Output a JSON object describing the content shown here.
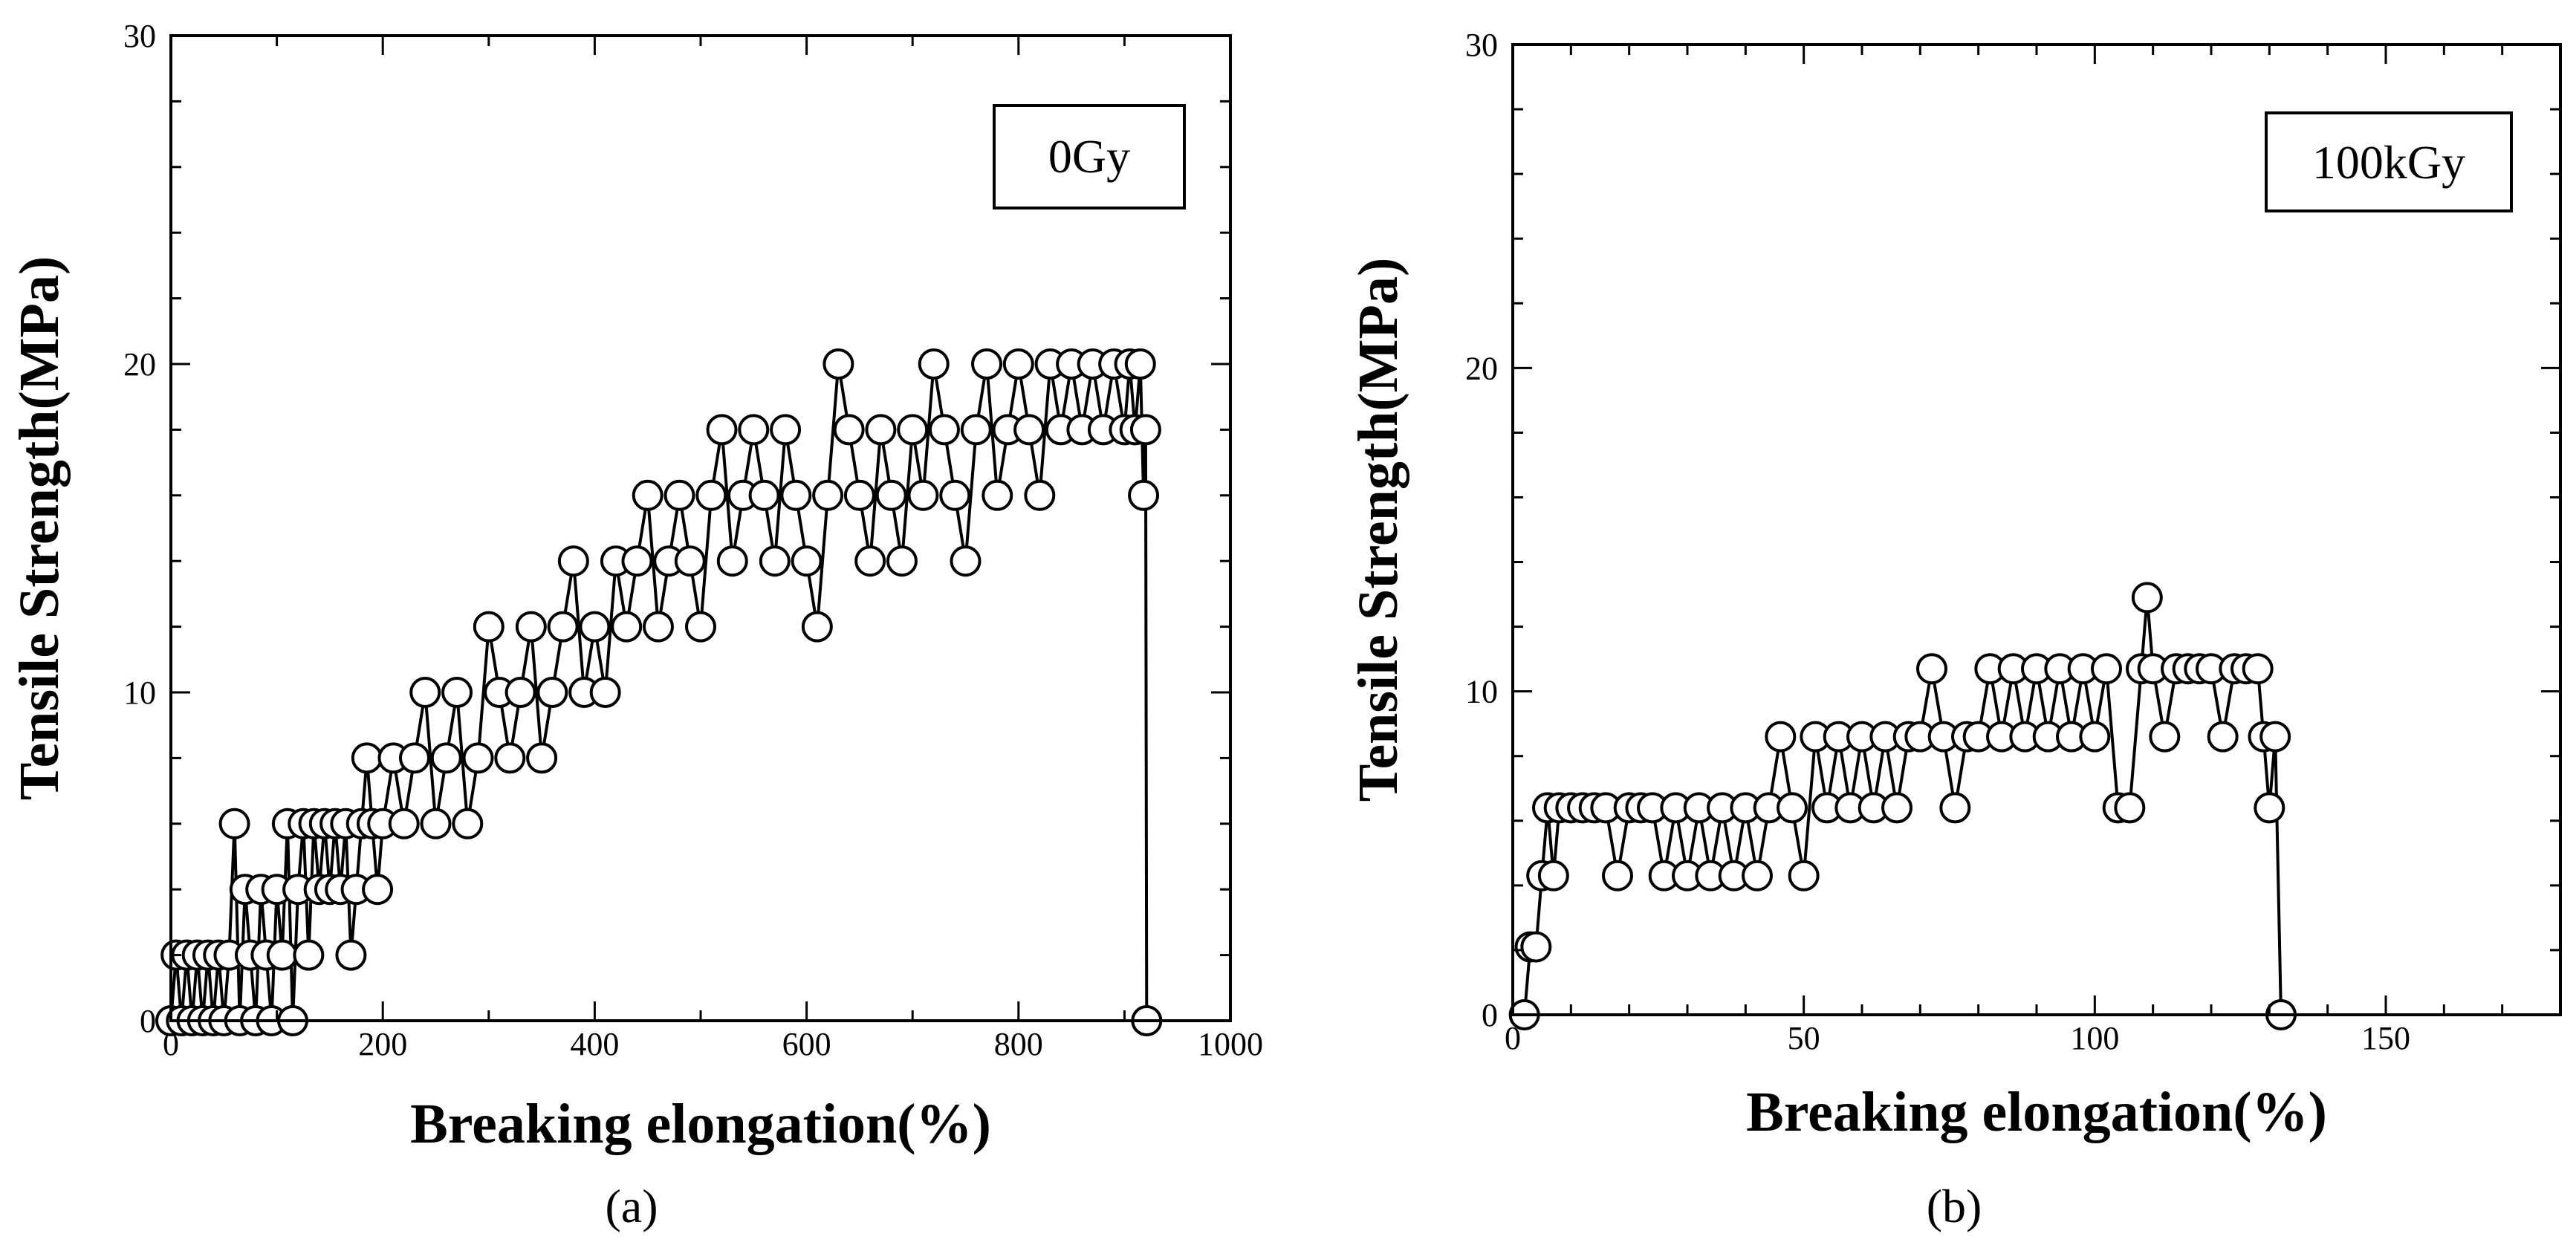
{
  "chart_data": [
    {
      "type": "line",
      "panel_caption": "(a)",
      "legend": "0Gy",
      "xlabel": "Breaking elongation(%)",
      "ylabel": "Tensile Strength(MPa)",
      "xlim": [
        0,
        1000
      ],
      "ylim": [
        0,
        30
      ],
      "xticks": [
        0,
        200,
        400,
        600,
        800,
        1000
      ],
      "yticks": [
        0,
        10,
        20,
        30
      ],
      "x_minor_step": 100,
      "y_minor_step": 2,
      "marker": "open-circle",
      "series": [
        {
          "name": "0Gy",
          "x": [
            0,
            5,
            10,
            15,
            20,
            25,
            30,
            35,
            40,
            45,
            50,
            55,
            60,
            65,
            70,
            75,
            80,
            85,
            90,
            95,
            100,
            105,
            110,
            115,
            120,
            125,
            130,
            135,
            140,
            145,
            150,
            155,
            160,
            165,
            170,
            175,
            180,
            185,
            190,
            195,
            200,
            210,
            220,
            230,
            240,
            250,
            260,
            270,
            280,
            290,
            300,
            310,
            320,
            330,
            340,
            350,
            360,
            370,
            380,
            390,
            400,
            410,
            420,
            430,
            440,
            450,
            460,
            470,
            480,
            490,
            500,
            510,
            520,
            530,
            540,
            550,
            560,
            570,
            580,
            590,
            600,
            610,
            620,
            630,
            640,
            650,
            660,
            670,
            680,
            690,
            700,
            710,
            720,
            730,
            740,
            750,
            760,
            770,
            780,
            790,
            800,
            810,
            820,
            830,
            840,
            850,
            860,
            870,
            880,
            890,
            900,
            905,
            910,
            915,
            918,
            920,
            921
          ],
          "y": [
            0,
            2,
            0,
            2,
            0,
            2,
            0,
            2,
            0,
            2,
            0,
            2,
            6,
            0,
            4,
            2,
            0,
            4,
            2,
            0,
            4,
            2,
            6,
            0,
            4,
            6,
            2,
            6,
            4,
            6,
            4,
            6,
            4,
            6,
            2,
            4,
            6,
            8,
            6,
            4,
            6,
            8,
            6,
            8,
            10,
            6,
            8,
            10,
            6,
            8,
            12,
            10,
            8,
            10,
            12,
            8,
            10,
            12,
            14,
            10,
            12,
            10,
            14,
            12,
            14,
            16,
            12,
            14,
            16,
            14,
            12,
            16,
            18,
            14,
            16,
            18,
            16,
            14,
            18,
            16,
            14,
            12,
            16,
            20,
            18,
            16,
            14,
            18,
            16,
            14,
            18,
            16,
            20,
            18,
            16,
            14,
            18,
            20,
            16,
            18,
            20,
            18,
            16,
            20,
            18,
            20,
            18,
            20,
            18,
            20,
            18,
            20,
            18,
            20,
            16,
            18,
            0
          ]
        }
      ]
    },
    {
      "type": "line",
      "panel_caption": "(b)",
      "legend": "100kGy",
      "xlabel": "Breaking elongation(%)",
      "ylabel": "Tensile Strength(MPa)",
      "xlim": [
        0,
        180
      ],
      "ylim": [
        0,
        30
      ],
      "xticks": [
        0,
        50,
        100,
        150
      ],
      "yticks": [
        0,
        10,
        20,
        30
      ],
      "x_minor_step": 10,
      "y_minor_step": 2,
      "marker": "open-circle",
      "series": [
        {
          "name": "100kGy",
          "x": [
            2,
            3,
            4,
            5,
            6,
            7,
            8,
            10,
            12,
            14,
            16,
            18,
            20,
            22,
            24,
            26,
            28,
            30,
            32,
            34,
            36,
            38,
            40,
            42,
            44,
            46,
            48,
            50,
            52,
            54,
            56,
            58,
            60,
            62,
            64,
            66,
            68,
            70,
            72,
            74,
            76,
            78,
            80,
            82,
            84,
            86,
            88,
            90,
            92,
            94,
            96,
            98,
            100,
            102,
            104,
            106,
            108,
            109,
            110,
            112,
            114,
            116,
            118,
            120,
            122,
            124,
            126,
            128,
            129,
            130,
            131,
            132
          ],
          "y": [
            0,
            2.1,
            2.1,
            4.3,
            6.4,
            4.3,
            6.4,
            6.4,
            6.4,
            6.4,
            6.4,
            4.3,
            6.4,
            6.4,
            6.4,
            4.3,
            6.4,
            4.3,
            6.4,
            4.3,
            6.4,
            4.3,
            6.4,
            4.3,
            6.4,
            8.6,
            6.4,
            4.3,
            8.6,
            6.4,
            8.6,
            6.4,
            8.6,
            6.4,
            8.6,
            6.4,
            8.6,
            8.6,
            10.7,
            8.6,
            6.4,
            8.6,
            8.6,
            10.7,
            8.6,
            10.7,
            8.6,
            10.7,
            8.6,
            10.7,
            8.6,
            10.7,
            8.6,
            10.7,
            6.4,
            6.4,
            10.7,
            12.9,
            10.7,
            8.6,
            10.7,
            10.7,
            10.7,
            10.7,
            8.6,
            10.7,
            10.7,
            10.7,
            8.6,
            6.4,
            8.6,
            0
          ]
        }
      ]
    }
  ]
}
